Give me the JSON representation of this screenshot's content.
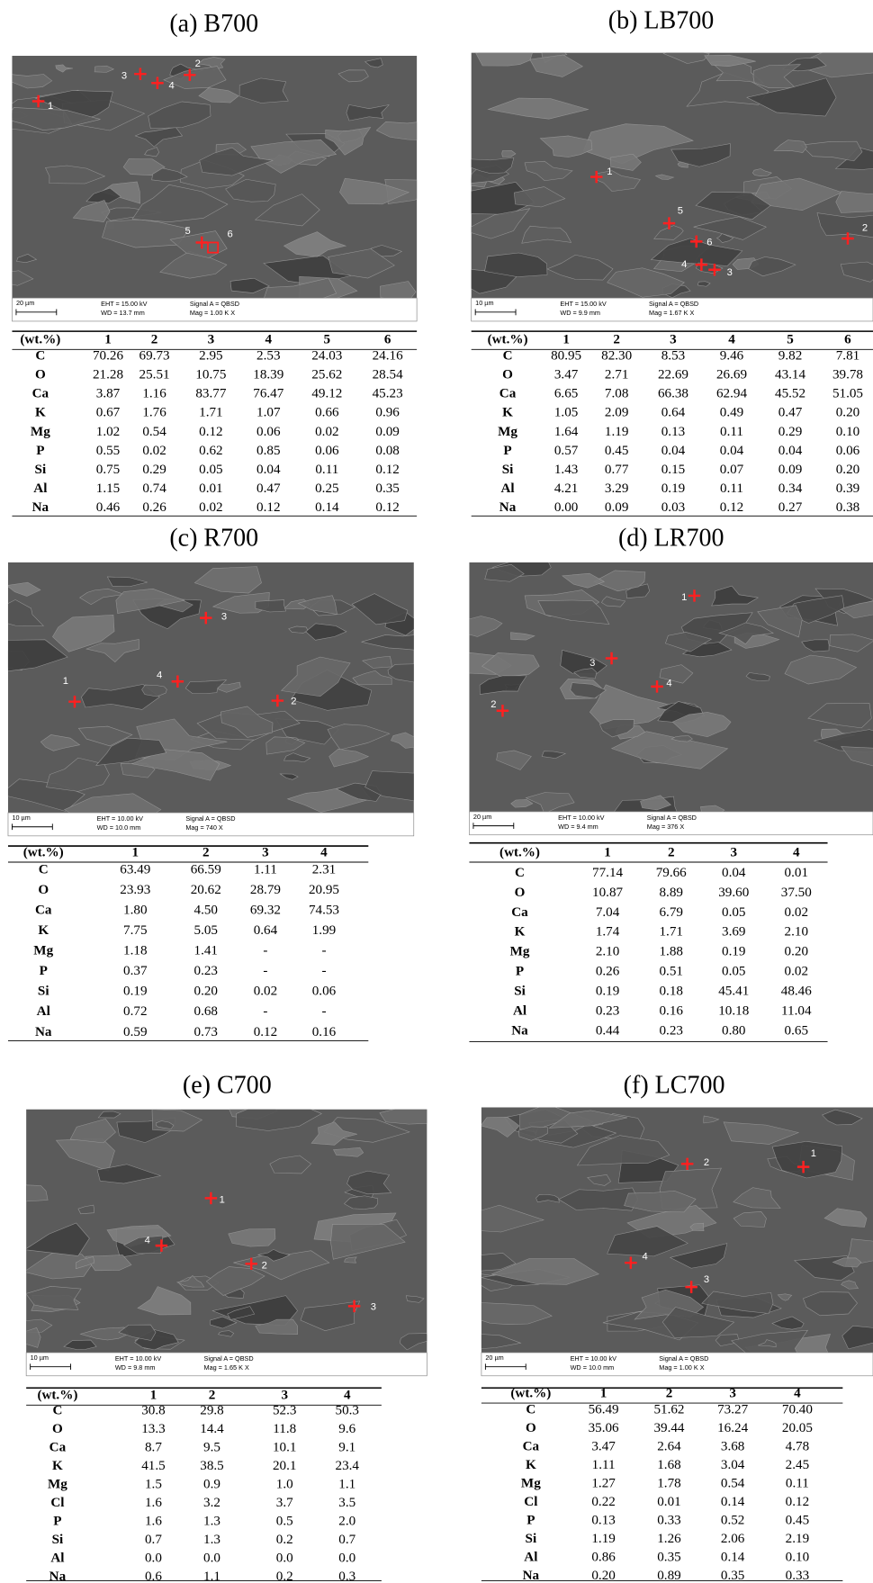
{
  "panels": [
    {
      "title": "(a) B700",
      "image": {
        "points": [
          "1",
          "2",
          "3",
          "4",
          "5",
          "6"
        ],
        "scale": "20 µm",
        "eht": "EHT = 15.00 kV",
        "wd": "WD = 13.7 mm",
        "signal": "Signal A = QBSD",
        "mag": "Mag = 1.00 K X"
      },
      "table": {
        "header": [
          "(wt.%)",
          "1",
          "2",
          "3",
          "4",
          "5",
          "6"
        ],
        "rows": [
          [
            "C",
            "70.26",
            "69.73",
            "2.95",
            "2.53",
            "24.03",
            "24.16"
          ],
          [
            "O",
            "21.28",
            "25.51",
            "10.75",
            "18.39",
            "25.62",
            "28.54"
          ],
          [
            "Ca",
            "3.87",
            "1.16",
            "83.77",
            "76.47",
            "49.12",
            "45.23"
          ],
          [
            "K",
            "0.67",
            "1.76",
            "1.71",
            "1.07",
            "0.66",
            "0.96"
          ],
          [
            "Mg",
            "1.02",
            "0.54",
            "0.12",
            "0.06",
            "0.02",
            "0.09"
          ],
          [
            "P",
            "0.55",
            "0.02",
            "0.62",
            "0.85",
            "0.06",
            "0.08"
          ],
          [
            "Si",
            "0.75",
            "0.29",
            "0.05",
            "0.04",
            "0.11",
            "0.12"
          ],
          [
            "Al",
            "1.15",
            "0.74",
            "0.01",
            "0.47",
            "0.25",
            "0.35"
          ],
          [
            "Na",
            "0.46",
            "0.26",
            "0.02",
            "0.12",
            "0.14",
            "0.12"
          ]
        ]
      }
    },
    {
      "title": "(b) LB700",
      "image": {
        "points": [
          "1",
          "2",
          "3",
          "4",
          "5",
          "6"
        ],
        "scale": "10 µm",
        "eht": "EHT = 15.00 kV",
        "wd": "WD = 9.9 mm",
        "signal": "Signal A = QBSD",
        "mag": "Mag = 1.67 K X"
      },
      "table": {
        "header": [
          "(wt.%)",
          "1",
          "2",
          "3",
          "4",
          "5",
          "6"
        ],
        "rows": [
          [
            "C",
            "80.95",
            "82.30",
            "8.53",
            "9.46",
            "9.82",
            "7.81"
          ],
          [
            "O",
            "3.47",
            "2.71",
            "22.69",
            "26.69",
            "43.14",
            "39.78"
          ],
          [
            "Ca",
            "6.65",
            "7.08",
            "66.38",
            "62.94",
            "45.52",
            "51.05"
          ],
          [
            "K",
            "1.05",
            "2.09",
            "0.64",
            "0.49",
            "0.47",
            "0.20"
          ],
          [
            "Mg",
            "1.64",
            "1.19",
            "0.13",
            "0.11",
            "0.29",
            "0.10"
          ],
          [
            "P",
            "0.57",
            "0.45",
            "0.04",
            "0.04",
            "0.04",
            "0.06"
          ],
          [
            "Si",
            "1.43",
            "0.77",
            "0.15",
            "0.07",
            "0.09",
            "0.20"
          ],
          [
            "Al",
            "4.21",
            "3.29",
            "0.19",
            "0.11",
            "0.34",
            "0.39"
          ],
          [
            "Na",
            "0.00",
            "0.09",
            "0.03",
            "0.12",
            "0.27",
            "0.38"
          ]
        ]
      }
    },
    {
      "title": "(c) R700",
      "image": {
        "points": [
          "1",
          "2",
          "3",
          "4"
        ],
        "scale": "10 µm",
        "eht": "EHT = 10.00 kV",
        "wd": "WD = 10.0 mm",
        "signal": "Signal A = QBSD",
        "mag": "Mag = 740 X"
      },
      "table": {
        "header": [
          "(wt.%)",
          "1",
          "2",
          "3",
          "4"
        ],
        "rows": [
          [
            "C",
            "63.49",
            "66.59",
            "1.11",
            "2.31"
          ],
          [
            "O",
            "23.93",
            "20.62",
            "28.79",
            "20.95"
          ],
          [
            "Ca",
            "1.80",
            "4.50",
            "69.32",
            "74.53"
          ],
          [
            "K",
            "7.75",
            "5.05",
            "0.64",
            "1.99"
          ],
          [
            "Mg",
            "1.18",
            "1.41",
            "-",
            "-"
          ],
          [
            "P",
            "0.37",
            "0.23",
            "-",
            "-"
          ],
          [
            "Si",
            "0.19",
            "0.20",
            "0.02",
            "0.06"
          ],
          [
            "Al",
            "0.72",
            "0.68",
            "-",
            "-"
          ],
          [
            "Na",
            "0.59",
            "0.73",
            "0.12",
            "0.16"
          ]
        ]
      }
    },
    {
      "title": "(d) LR700",
      "image": {
        "points": [
          "1",
          "2",
          "3",
          "4"
        ],
        "scale": "20 µm",
        "eht": "EHT = 10.00 kV",
        "wd": "WD = 9.4 mm",
        "signal": "Signal A = QBSD",
        "mag": "Mag = 376 X"
      },
      "table": {
        "header": [
          "(wt.%)",
          "1",
          "2",
          "3",
          "4"
        ],
        "rows": [
          [
            "C",
            "77.14",
            "79.66",
            "0.04",
            "0.01"
          ],
          [
            "O",
            "10.87",
            "8.89",
            "39.60",
            "37.50"
          ],
          [
            "Ca",
            "7.04",
            "6.79",
            "0.05",
            "0.02"
          ],
          [
            "K",
            "1.74",
            "1.71",
            "3.69",
            "2.10"
          ],
          [
            "Mg",
            "2.10",
            "1.88",
            "0.19",
            "0.20"
          ],
          [
            "P",
            "0.26",
            "0.51",
            "0.05",
            "0.02"
          ],
          [
            "Si",
            "0.19",
            "0.18",
            "45.41",
            "48.46"
          ],
          [
            "Al",
            "0.23",
            "0.16",
            "10.18",
            "11.04"
          ],
          [
            "Na",
            "0.44",
            "0.23",
            "0.80",
            "0.65"
          ]
        ]
      }
    },
    {
      "title": "(e) C700",
      "image": {
        "points": [
          "1",
          "2",
          "3",
          "4"
        ],
        "scale": "10 µm",
        "eht": "EHT = 10.00 kV",
        "wd": "WD = 9.8 mm",
        "signal": "Signal A = QBSD",
        "mag": "Mag = 1.65 K X"
      },
      "table": {
        "header": [
          "(wt.%)",
          "1",
          "2",
          "3",
          "4"
        ],
        "rows": [
          [
            "C",
            "30.8",
            "29.8",
            "52.3",
            "50.3"
          ],
          [
            "O",
            "13.3",
            "14.4",
            "11.8",
            "9.6"
          ],
          [
            "Ca",
            "8.7",
            "9.5",
            "10.1",
            "9.1"
          ],
          [
            "K",
            "41.5",
            "38.5",
            "20.1",
            "23.4"
          ],
          [
            "Mg",
            "1.5",
            "0.9",
            "1.0",
            "1.1"
          ],
          [
            "Cl",
            "1.6",
            "3.2",
            "3.7",
            "3.5"
          ],
          [
            "P",
            "1.6",
            "1.3",
            "0.5",
            "2.0"
          ],
          [
            "Si",
            "0.7",
            "1.3",
            "0.2",
            "0.7"
          ],
          [
            "Al",
            "0.0",
            "0.0",
            "0.0",
            "0.0"
          ],
          [
            "Na",
            "0.6",
            "1.1",
            "0.2",
            "0.3"
          ]
        ]
      }
    },
    {
      "title": "(f) LC700",
      "image": {
        "points": [
          "1",
          "2",
          "3",
          "4"
        ],
        "scale": "20 µm",
        "eht": "EHT = 10.00 kV",
        "wd": "WD = 10.0 mm",
        "signal": "Signal A = QBSD",
        "mag": "Mag = 1.00 K X"
      },
      "table": {
        "header": [
          "(wt.%)",
          "1",
          "2",
          "3",
          "4"
        ],
        "rows": [
          [
            "C",
            "56.49",
            "51.62",
            "73.27",
            "70.40"
          ],
          [
            "O",
            "35.06",
            "39.44",
            "16.24",
            "20.05"
          ],
          [
            "Ca",
            "3.47",
            "2.64",
            "3.68",
            "4.78"
          ],
          [
            "K",
            "1.11",
            "1.68",
            "3.04",
            "2.45"
          ],
          [
            "Mg",
            "1.27",
            "1.78",
            "0.54",
            "0.11"
          ],
          [
            "Cl",
            "0.22",
            "0.01",
            "0.14",
            "0.12"
          ],
          [
            "P",
            "0.13",
            "0.33",
            "0.52",
            "0.45"
          ],
          [
            "Si",
            "1.19",
            "1.26",
            "2.06",
            "2.19"
          ],
          [
            "Al",
            "0.86",
            "0.35",
            "0.14",
            "0.10"
          ],
          [
            "Na",
            "0.20",
            "0.89",
            "0.35",
            "0.33"
          ]
        ]
      }
    }
  ]
}
